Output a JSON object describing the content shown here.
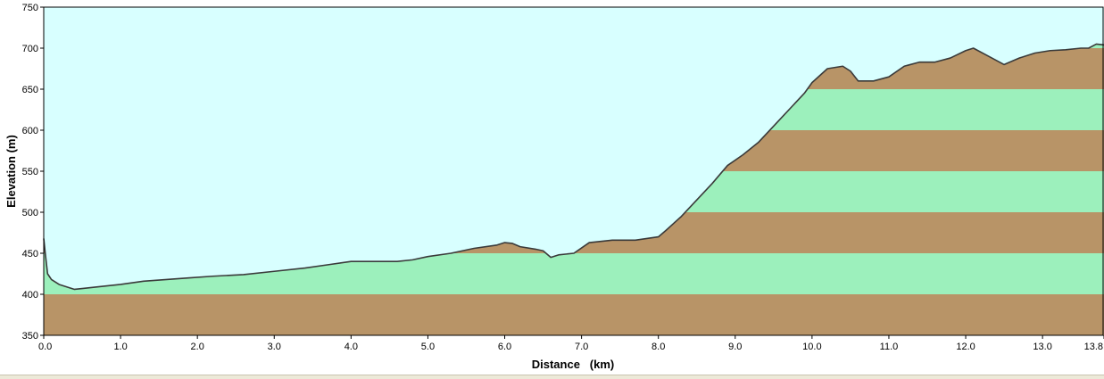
{
  "chart_data": {
    "type": "area",
    "xlabel": "Distance   (km)",
    "ylabel": "Elevation (m)",
    "xlim": [
      0,
      13.8
    ],
    "ylim": [
      350,
      750
    ],
    "x_ticks": [
      "0.0",
      "1.0",
      "2.0",
      "3.0",
      "4.0",
      "5.0",
      "6.0",
      "7.0",
      "8.0",
      "9.0",
      "10.0",
      "11.0",
      "12.0",
      "13.0",
      "13.8"
    ],
    "y_ticks": [
      "350",
      "400",
      "450",
      "500",
      "550",
      "600",
      "650",
      "700",
      "750"
    ],
    "band_interval_m": 50,
    "grid": false,
    "colors": {
      "sky": "#d8ffff",
      "band_green": "#9cf0bc",
      "band_brown": "#b89467",
      "profile_line": "#3a3a3a"
    },
    "series": [
      {
        "x": [
          0.0,
          0.02,
          0.05,
          0.1,
          0.2,
          0.3,
          0.4,
          0.5,
          0.7,
          1.0,
          1.3,
          1.6,
          1.9,
          2.2,
          2.6,
          3.0,
          3.4,
          3.7,
          4.0,
          4.3,
          4.6,
          4.8,
          5.0,
          5.3,
          5.6,
          5.9,
          6.0,
          6.1,
          6.2,
          6.4,
          6.5,
          6.6,
          6.7,
          6.9,
          7.1,
          7.4,
          7.7,
          8.0,
          8.1,
          8.3,
          8.5,
          8.7,
          8.9,
          9.1,
          9.3,
          9.5,
          9.7,
          9.9,
          10.0,
          10.2,
          10.4,
          10.5,
          10.6,
          10.8,
          11.0,
          11.2,
          11.4,
          11.6,
          11.8,
          12.0,
          12.1,
          12.3,
          12.5,
          12.7,
          12.9,
          13.1,
          13.3,
          13.5,
          13.6,
          13.7,
          13.8
        ],
        "y": [
          468,
          450,
          425,
          418,
          412,
          409,
          406,
          407,
          409,
          412,
          416,
          418,
          420,
          422,
          424,
          428,
          432,
          436,
          440,
          440,
          440,
          442,
          446,
          450,
          456,
          460,
          463,
          462,
          458,
          455,
          453,
          445,
          448,
          450,
          463,
          466,
          466,
          470,
          478,
          495,
          515,
          535,
          557,
          570,
          585,
          605,
          625,
          645,
          658,
          675,
          678,
          672,
          660,
          660,
          665,
          678,
          683,
          683,
          688,
          697,
          700,
          690,
          680,
          688,
          694,
          697,
          698,
          700,
          700,
          705,
          704
        ]
      }
    ]
  }
}
